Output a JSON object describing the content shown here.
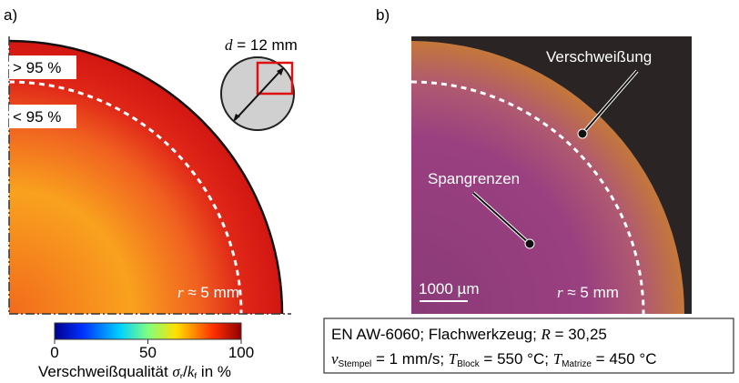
{
  "panel_a": {
    "label": "a)",
    "zone_outer": "> 95 %",
    "zone_inner": "< 95 %",
    "radius_label": [
      "r",
      " ≈ 5 mm"
    ],
    "diameter_label": [
      "d",
      " = 12 mm"
    ],
    "colorbar": {
      "lim": [
        0,
        100
      ],
      "ticks": [
        0,
        50,
        100
      ],
      "label": [
        "Verschweißqualität ",
        "σ",
        "r",
        "/",
        "k",
        "f",
        " in %"
      ]
    }
  },
  "panel_b": {
    "label": "b)",
    "annotation_weld": "Verschweißung",
    "annotation_grain": "Spangrenzen",
    "scale_bar": "1000 µm",
    "radius_label": [
      "r",
      " ≈ 5 mm"
    ]
  },
  "caption": {
    "line1": [
      "EN AW-6060; Flachwerkzeug; ",
      "R",
      " = 30,25"
    ],
    "line2": [
      "v",
      "Stempel",
      " = 1 mm/s; ",
      "T",
      "Block",
      " = 550 °C; ",
      "T",
      "Matrize",
      " = 450 °C"
    ]
  }
}
